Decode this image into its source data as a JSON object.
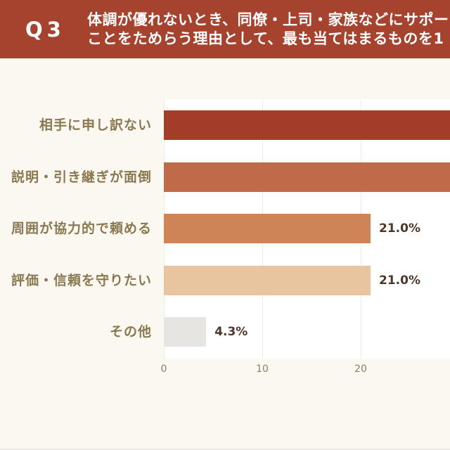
{
  "header": {
    "question_number": "Q3",
    "question_line1": "体調が優れないとき、同僚・上司・家族などにサポー",
    "question_line2": "ことをためらう理由として、最も当てはまるものを1"
  },
  "chart_data": {
    "type": "bar",
    "orientation": "horizontal",
    "title": "",
    "xlabel": "",
    "ylabel": "",
    "categories": [
      "相手に申し訳ない",
      "説明・引き継ぎが面倒",
      "周囲が協力的で頼める",
      "評価・信頼を守りたい",
      "その他"
    ],
    "values": [
      null,
      null,
      21.0,
      21.0,
      4.3
    ],
    "value_labels": [
      "",
      "",
      "21.0%",
      "21.0%",
      "4.3%"
    ],
    "clipped_beyond_frame": [
      true,
      true,
      false,
      false,
      false
    ],
    "bar_colors": [
      "#A33C28",
      "#C16A4A",
      "#CF8457",
      "#E8C59E",
      "#E6E5E1"
    ],
    "x_ticks": [
      "0",
      "10",
      "20"
    ],
    "x_tick_values": [
      0,
      10,
      20
    ],
    "xlim_visible": [
      0,
      29.1
    ],
    "grid": "vertical-faint",
    "legend": "none"
  },
  "colors": {
    "page_bg": "#FBF8F2",
    "plot_bg": "#FFFFFF",
    "header_bg": "#A6432F",
    "header_text": "#FFFFFF",
    "category_label": "#8A7950",
    "value_label": "#4E362B",
    "tick_label": "#8D7C5E",
    "gridline": "#EFEBE4",
    "divider": "#EAE8E4"
  }
}
